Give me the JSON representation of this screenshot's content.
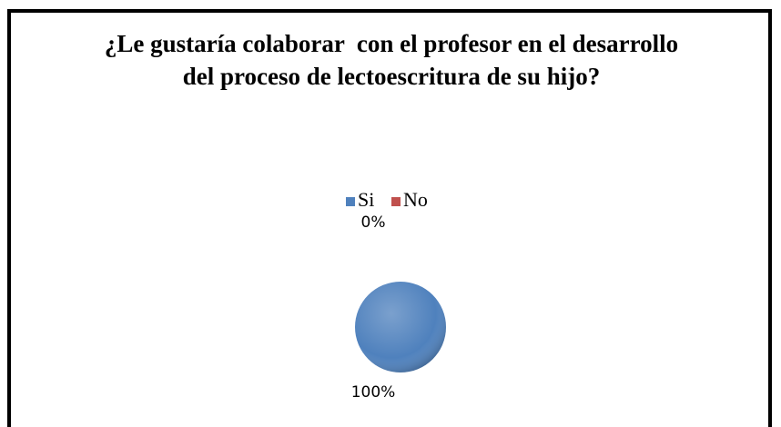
{
  "chart_data": {
    "type": "pie",
    "title": "¿Le gustaría colaborar  con el profesor en el desarrollo del proceso de lectoescritura de su hijo?",
    "categories": [
      "Si",
      "No"
    ],
    "values": [
      100,
      0
    ],
    "value_labels": [
      "100%",
      "0%"
    ],
    "colors": [
      "#4f81bd",
      "#c0504d"
    ],
    "legend": "top"
  }
}
